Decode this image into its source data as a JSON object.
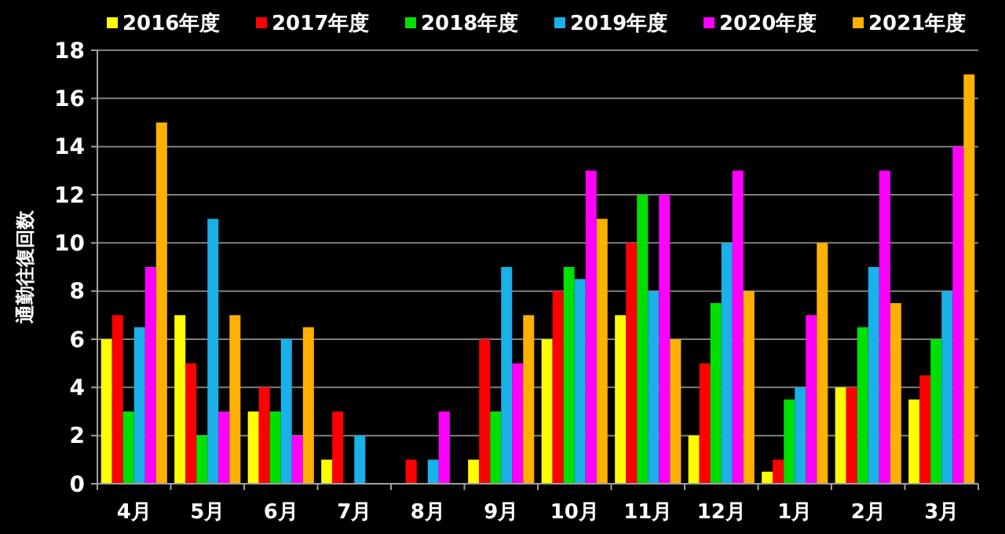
{
  "chart_data": {
    "type": "bar",
    "ylabel": "通勤往復回数",
    "categories": [
      "4月",
      "5月",
      "6月",
      "7月",
      "8月",
      "9月",
      "10月",
      "11月",
      "12月",
      "1月",
      "2月",
      "3月"
    ],
    "series": [
      {
        "name": "2016年度",
        "color": "#ffff00",
        "values": [
          6,
          7,
          3,
          1,
          0,
          1,
          6,
          7,
          2,
          0.5,
          4,
          3.5
        ]
      },
      {
        "name": "2017年度",
        "color": "#ff0000",
        "values": [
          7,
          5,
          4,
          3,
          1,
          6,
          8,
          10,
          5,
          1,
          4,
          4.5
        ]
      },
      {
        "name": "2018年度",
        "color": "#00e000",
        "values": [
          3,
          2,
          3,
          0,
          0,
          3,
          9,
          12,
          7.5,
          3.5,
          6.5,
          6
        ]
      },
      {
        "name": "2019年度",
        "color": "#1ab0e8",
        "values": [
          6.5,
          11,
          6,
          2,
          1,
          9,
          8.5,
          8,
          10,
          4,
          9,
          8
        ]
      },
      {
        "name": "2020年度",
        "color": "#ff00ff",
        "values": [
          9,
          3,
          2,
          0,
          3,
          5,
          13,
          12,
          13,
          7,
          13,
          14
        ]
      },
      {
        "name": "2021年度",
        "color": "#ffb000",
        "values": [
          15,
          7,
          6.5,
          0,
          0,
          7,
          11,
          6,
          8,
          10,
          7.5,
          17
        ]
      }
    ],
    "ylim": [
      0,
      18
    ],
    "yticks": [
      0,
      2,
      4,
      6,
      8,
      10,
      12,
      14,
      16,
      18
    ],
    "grid": "y",
    "legend": "top"
  }
}
